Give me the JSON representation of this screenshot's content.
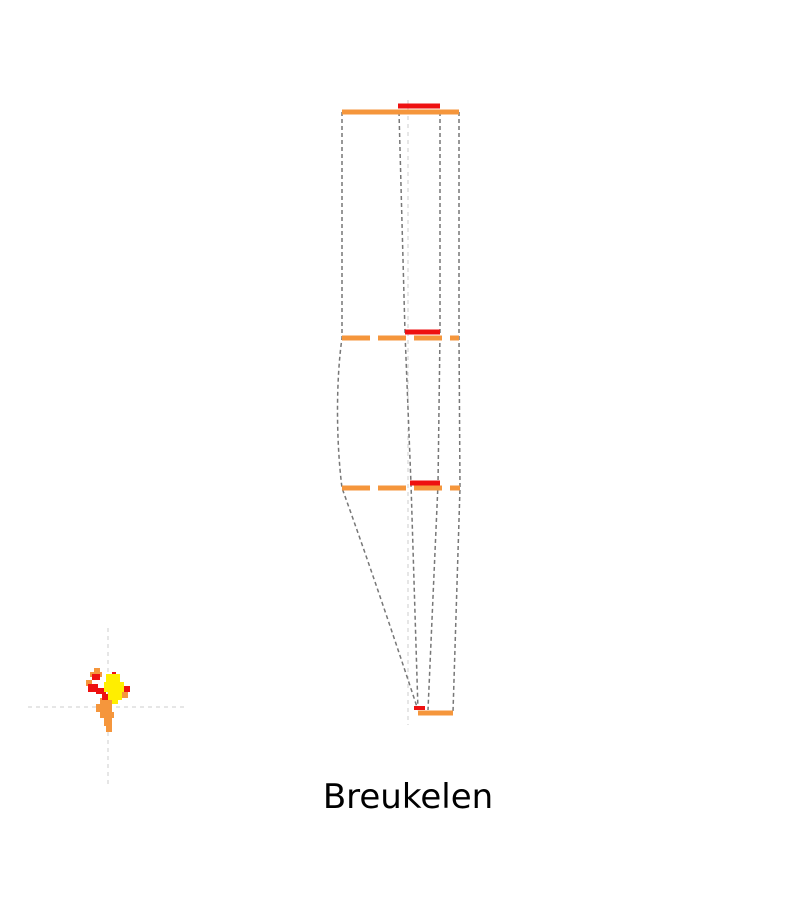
{
  "diagram": {
    "station_name": "Breukelen",
    "colors": {
      "orange": "#F5963C",
      "red": "#EE1111",
      "yellow": "#FFEE00",
      "connector": "#777777",
      "axis": "#CCCCCC",
      "background": "#FFFFFF"
    },
    "platform_style": {
      "orange_solid": "solid",
      "orange_dashed": "dashed"
    }
  }
}
